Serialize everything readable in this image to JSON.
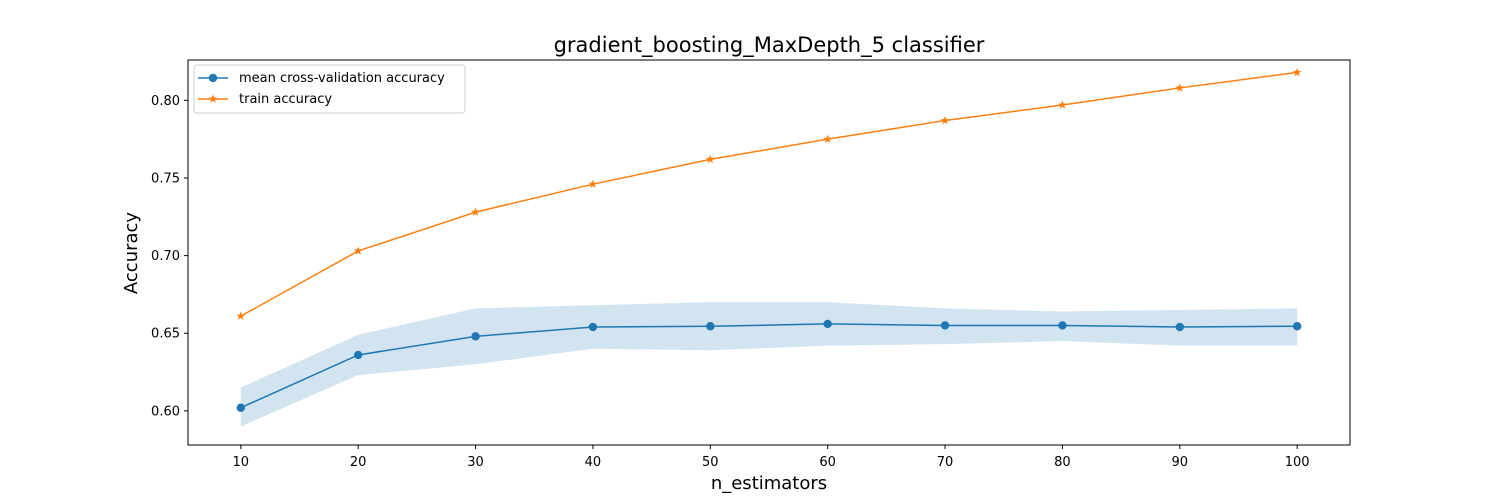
{
  "chart_data": {
    "type": "line",
    "title": "gradient_boosting_MaxDepth_5 classifier",
    "xlabel": "n_estimators",
    "ylabel": "Accuracy",
    "x": [
      10,
      20,
      30,
      40,
      50,
      60,
      70,
      80,
      90,
      100
    ],
    "xticks": [
      10,
      20,
      30,
      40,
      50,
      60,
      70,
      80,
      90,
      100
    ],
    "yticks": [
      0.6,
      0.65,
      0.7,
      0.75,
      0.8
    ],
    "ytick_labels": [
      "0.60",
      "0.65",
      "0.70",
      "0.75",
      "0.80"
    ],
    "xlim": [
      5.5,
      104.5
    ],
    "ylim": [
      0.578,
      0.826
    ],
    "grid": false,
    "legend_position": "upper left",
    "series": [
      {
        "name": "mean cross-validation accuracy",
        "color": "#1f77b4",
        "marker": "circle",
        "values": [
          0.602,
          0.636,
          0.648,
          0.654,
          0.6545,
          0.656,
          0.655,
          0.655,
          0.654,
          0.6545
        ],
        "band_upper": [
          0.615,
          0.649,
          0.666,
          0.668,
          0.67,
          0.67,
          0.666,
          0.664,
          0.665,
          0.666
        ],
        "band_lower": [
          0.59,
          0.623,
          0.63,
          0.64,
          0.639,
          0.642,
          0.643,
          0.645,
          0.642,
          0.642
        ],
        "band_color": "#1f77b4",
        "band_opacity": 0.2
      },
      {
        "name": "train accuracy",
        "color": "#ff7f0e",
        "marker": "star",
        "values": [
          0.661,
          0.703,
          0.728,
          0.746,
          0.762,
          0.775,
          0.787,
          0.797,
          0.808,
          0.818
        ]
      }
    ]
  }
}
